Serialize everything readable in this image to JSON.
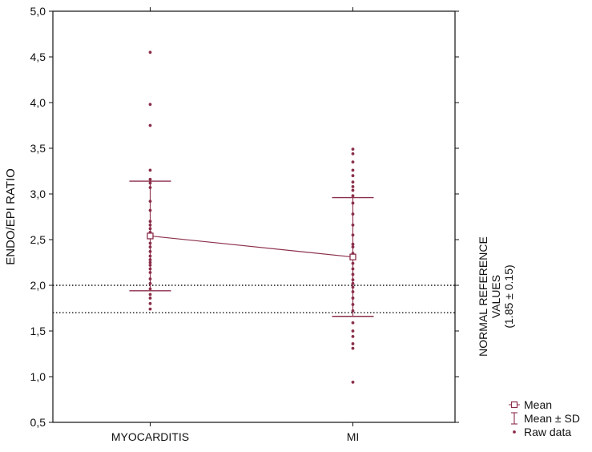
{
  "chart_data": {
    "type": "scatter",
    "title": "",
    "xlabel": "",
    "ylabel": "ENDO/EPI RATIO",
    "categories": [
      "MYOCARDITIS",
      "MI"
    ],
    "ylim": [
      0.5,
      5.0
    ],
    "yticks": [
      0.5,
      1.0,
      1.5,
      2.0,
      2.5,
      3.0,
      3.5,
      4.0,
      4.5,
      5.0
    ],
    "ytick_labels": [
      "0,5",
      "1,0",
      "1,5",
      "2,0",
      "2,5",
      "3,0",
      "3,5",
      "4,0",
      "4,5",
      "5,0"
    ],
    "grid": false,
    "mean": [
      2.54,
      2.31
    ],
    "sd_upper": [
      3.14,
      2.96
    ],
    "sd_lower": [
      1.94,
      1.66
    ],
    "raw_data": [
      [
        4.55,
        3.98,
        3.75,
        3.26,
        3.16,
        3.12,
        3.07,
        2.92,
        2.82,
        2.7,
        2.66,
        2.62,
        2.58,
        2.52,
        2.46,
        2.42,
        2.37,
        2.32,
        2.28,
        2.25,
        2.22,
        2.18,
        2.14,
        2.07,
        2.02,
        1.96,
        1.9,
        1.86,
        1.8,
        1.74
      ],
      [
        3.49,
        3.44,
        3.35,
        3.26,
        3.2,
        3.13,
        3.08,
        3.04,
        2.98,
        2.9,
        2.78,
        2.66,
        2.55,
        2.45,
        2.42,
        2.35,
        2.24,
        2.18,
        2.12,
        2.06,
        2.02,
        1.98,
        1.93,
        1.86,
        1.79,
        1.72,
        1.59,
        1.5,
        1.44,
        1.36,
        1.31,
        0.94
      ]
    ],
    "reference_lines": [
      2.0,
      1.7
    ],
    "reference_label": [
      "NORMAL REFERENCE",
      "VALUES",
      "(1.85 ± 0.15)"
    ],
    "legend": {
      "placement": "bottom-right",
      "items": [
        "Mean",
        "Mean ± SD",
        "Raw data"
      ]
    },
    "colors": {
      "series": "#8b2f4a",
      "axis": "#111111",
      "reference": "#111111"
    }
  }
}
